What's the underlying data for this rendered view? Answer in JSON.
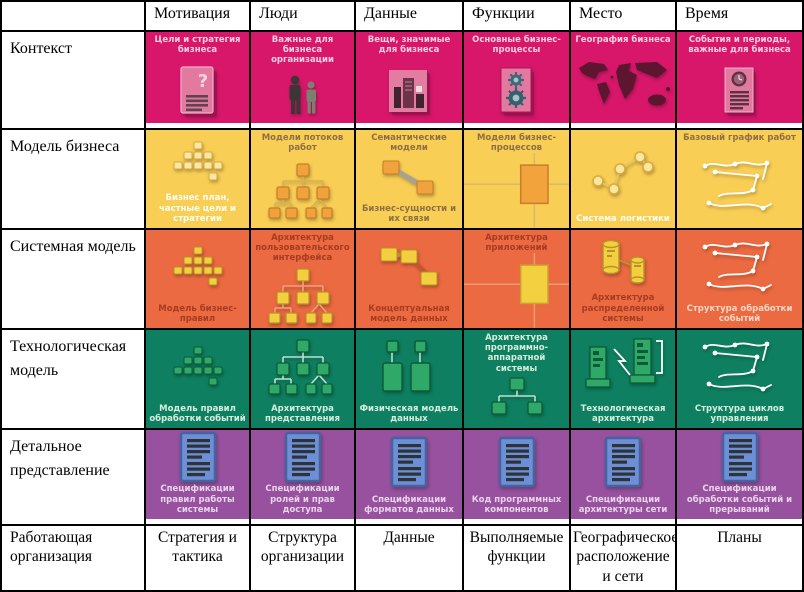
{
  "columns": [
    "",
    "Мотивация",
    "Люди",
    "Данные",
    "Функции",
    "Место",
    "Время"
  ],
  "rows": [
    {
      "label": "Контекст",
      "color": "#d8176b",
      "cells": [
        {
          "top": "Цели и стратегия бизнеса",
          "icon": "document-question",
          "tone": "light"
        },
        {
          "top": "Важные для бизнеса организации",
          "icon": "people",
          "tone": "light"
        },
        {
          "top": "Вещи, значимые для бизнеса",
          "icon": "business-objects",
          "tone": "light"
        },
        {
          "top": "Основные бизнес-процессы",
          "icon": "document-gears",
          "tone": "light"
        },
        {
          "top": "География бизнеса",
          "icon": "world-map",
          "tone": "light"
        },
        {
          "top": "События и периоды, важные для бизнеса",
          "icon": "document-clock",
          "tone": "light"
        }
      ]
    },
    {
      "label": "Модель бизнеса",
      "color": "#f9ce55",
      "cells": [
        {
          "bottom": "Бизнес план, частные цели и стратегии",
          "icon": "pyramid-nodes",
          "tone": "light"
        },
        {
          "top": "Модели потоков работ",
          "icon": "workflow-hierarchy",
          "tone": "dark"
        },
        {
          "top": "Семантические модели",
          "bottom": "Бизнес-сущности и их связи",
          "icon": "entity-link",
          "tone": "dark"
        },
        {
          "top": "Модели бизнес-процессов",
          "icon": "process-flow-cross",
          "tone": "dark",
          "stretch": true
        },
        {
          "bottom": "Система логистики",
          "icon": "logistics-network",
          "tone": "light"
        },
        {
          "top": "Базовый график работ",
          "icon": "sketch-diagram",
          "tone": "dark"
        }
      ]
    },
    {
      "label": "Системная модель",
      "color": "#ec6a41",
      "cells": [
        {
          "bottom": "Модель бизнес-правил",
          "icon": "pyramid-squares-yellow",
          "tone": "dark"
        },
        {
          "top": "Архитектура пользовательского интерфейса",
          "icon": "ui-hierarchy",
          "tone": "dark"
        },
        {
          "bottom": "Концептуальная модель данных",
          "icon": "entity-link-3",
          "tone": "dark"
        },
        {
          "top": "Архитектура приложений",
          "icon": "app-flow-cross",
          "tone": "dark",
          "stretch": true
        },
        {
          "bottom": "Архитектура распределенной системы",
          "icon": "cylinders-link",
          "tone": "dark"
        },
        {
          "bottom": "Структура обработки событий",
          "icon": "sketch-diagram",
          "tone": "light"
        }
      ]
    },
    {
      "label": "Технологическая модель",
      "color": "#0e8061",
      "cells": [
        {
          "bottom": "Модель правил обработки событий",
          "icon": "pyramid-squares-green",
          "tone": "light"
        },
        {
          "bottom": "Архитектура представления",
          "icon": "presentation-hierarchy",
          "tone": "light"
        },
        {
          "bottom": "Физическая модель данных",
          "icon": "physical-data-model",
          "tone": "light"
        },
        {
          "top": "Архитектура программно-аппаратной системы",
          "icon": "hw-sw-hierarchy",
          "tone": "light"
        },
        {
          "bottom": "Технологическая архитектура",
          "icon": "tech-towers",
          "tone": "light"
        },
        {
          "bottom": "Структура циклов управления",
          "icon": "sketch-diagram",
          "tone": "light"
        }
      ]
    },
    {
      "label": "Детальное представление",
      "color": "#97519e",
      "cells": [
        {
          "bottom": "Спецификации правил работы системы",
          "icon": "spec-document",
          "tone": "light"
        },
        {
          "bottom": "Спецификации ролей и прав доступа",
          "icon": "spec-document",
          "tone": "light"
        },
        {
          "bottom": "Спецификации форматов данных",
          "icon": "spec-document",
          "tone": "light"
        },
        {
          "bottom": "Код программных компонентов",
          "icon": "spec-document",
          "tone": "light"
        },
        {
          "bottom": "Спецификации архитектуры сети",
          "icon": "spec-document",
          "tone": "light"
        },
        {
          "bottom": "Спецификации обработки событий и прерываний",
          "icon": "spec-document",
          "tone": "light"
        }
      ]
    }
  ],
  "footer": {
    "label": "Работающая организация",
    "cells": [
      "Стратегия и тактика",
      "Структура организации",
      "Данные",
      "Выполняемые функции",
      "Географическое расположение и сети",
      "Планы"
    ]
  }
}
